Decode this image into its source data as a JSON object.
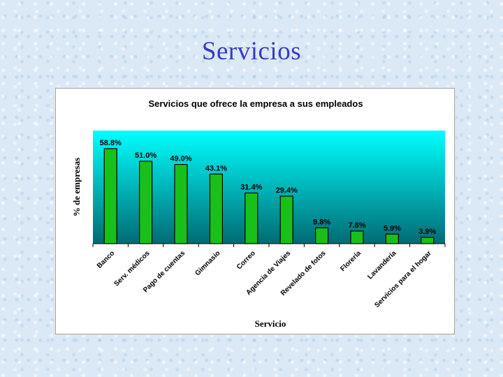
{
  "slide": {
    "title": "Servicios"
  },
  "chart_data": {
    "type": "bar",
    "title": "Servicios que ofrece la empresa a sus empleados",
    "xlabel": "Servicio",
    "ylabel": "% de empresas",
    "categories": [
      "Banco",
      "Serv. médicos",
      "Pago de cuentas",
      "Gimnasio",
      "Correo",
      "Agencia de Viajes",
      "Revelado de fotos",
      "Florería",
      "Lavandería",
      "Servicios para el hogar"
    ],
    "values": [
      58.8,
      51.0,
      49.0,
      43.1,
      31.4,
      29.4,
      9.8,
      7.8,
      5.9,
      3.9
    ],
    "data_labels": [
      "58.8%",
      "51.0%",
      "49.0%",
      "43.1%",
      "31.4%",
      "29.4%",
      "9.8%",
      "7.8%",
      "5.9%",
      "3.9%"
    ],
    "ylim": [
      0,
      70
    ],
    "legend": "none",
    "colors": {
      "bar": "#19c019",
      "bar_edge": "#000000",
      "plot_top": "#00ffff",
      "plot_bottom": "#006b73"
    }
  }
}
